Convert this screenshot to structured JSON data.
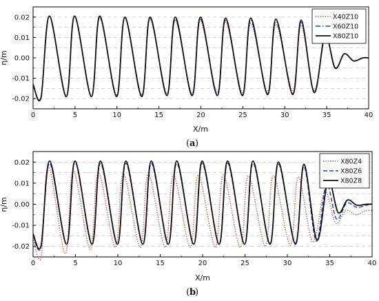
{
  "chart_data": [
    {
      "type": "line",
      "caption": "a",
      "xlabel": "X/m",
      "ylabel": "η/m",
      "xlim": [
        0,
        40
      ],
      "ylim": [
        -0.025,
        0.025
      ],
      "xticks": [
        "0",
        "5",
        "10",
        "15",
        "20",
        "25",
        "30",
        "35",
        "40"
      ],
      "yticks": [
        "-0.02",
        "-0.01",
        "0.00",
        "0.01",
        "0.02"
      ],
      "grid": "horizontal dashed",
      "legend_position": "top-right",
      "series": [
        {
          "name": "X40Z10",
          "style": "dotted",
          "color": "#c0392b",
          "x": [
            0,
            0.95,
            1.95,
            3.95,
            4.95,
            6.95,
            7.95,
            9.95,
            10.95,
            12.95,
            13.95,
            15.95,
            16.95,
            18.95,
            19.95,
            21.95,
            22.95,
            24.95,
            25.95,
            27.95,
            28.95,
            30.95,
            31.95,
            33.5,
            34.8,
            36.0,
            37.1,
            38.2,
            39.3,
            40
          ],
          "y": [
            -0.013,
            -0.019,
            0.0205,
            -0.0185,
            0.02,
            -0.0185,
            0.0195,
            -0.018,
            0.0195,
            -0.018,
            0.019,
            -0.0175,
            0.0185,
            -0.0175,
            0.018,
            -0.017,
            0.0175,
            -0.017,
            0.017,
            -0.0165,
            0.0165,
            -0.016,
            0.016,
            -0.016,
            0.0115,
            -0.0045,
            0.002,
            -0.0015,
            0.0,
            0.0
          ]
        },
        {
          "name": "X60Z10",
          "style": "dash-dot",
          "color": "#1f3fbf",
          "x": [
            0,
            0.95,
            1.95,
            3.95,
            4.95,
            6.95,
            7.95,
            9.95,
            10.95,
            12.95,
            13.95,
            15.95,
            16.95,
            18.95,
            19.95,
            21.95,
            22.95,
            24.95,
            25.95,
            27.95,
            28.95,
            30.95,
            31.95,
            33.5,
            34.8,
            36.0,
            37.1,
            38.2,
            39.3,
            40
          ],
          "y": [
            -0.013,
            -0.019,
            0.0205,
            -0.019,
            0.0205,
            -0.019,
            0.02,
            -0.0185,
            0.02,
            -0.0185,
            0.0195,
            -0.018,
            0.019,
            -0.018,
            0.019,
            -0.018,
            0.0185,
            -0.018,
            0.0185,
            -0.0175,
            0.018,
            -0.0175,
            0.0175,
            -0.0165,
            0.011,
            -0.005,
            0.002,
            -0.0015,
            0.0,
            0.0
          ]
        },
        {
          "name": "X80Z10",
          "style": "solid",
          "color": "#111111",
          "x": [
            0,
            0.95,
            1.95,
            3.95,
            4.95,
            6.95,
            7.95,
            9.95,
            10.95,
            12.95,
            13.95,
            15.95,
            16.95,
            18.95,
            19.95,
            21.95,
            22.95,
            24.95,
            25.95,
            27.95,
            28.95,
            30.95,
            31.95,
            33.5,
            34.8,
            36.0,
            37.1,
            38.2,
            39.3,
            40
          ],
          "y": [
            -0.013,
            -0.0195,
            0.0205,
            -0.019,
            0.0205,
            -0.019,
            0.0205,
            -0.019,
            0.02,
            -0.019,
            0.02,
            -0.0185,
            0.02,
            -0.0185,
            0.02,
            -0.0185,
            0.0195,
            -0.0185,
            0.0195,
            -0.018,
            0.019,
            -0.018,
            0.0185,
            -0.017,
            0.011,
            -0.005,
            0.002,
            -0.0015,
            0.0,
            0.0
          ]
        }
      ]
    },
    {
      "type": "line",
      "caption": "b",
      "xlabel": "X/m",
      "ylabel": "η/m",
      "xlim": [
        0,
        40
      ],
      "ylim": [
        -0.025,
        0.025
      ],
      "xticks": [
        "0",
        "5",
        "10",
        "15",
        "20",
        "25",
        "30",
        "35",
        "40"
      ],
      "yticks": [
        "-0.02",
        "-0.01",
        "0.00",
        "0.01",
        "0.02"
      ],
      "grid": "horizontal dashed",
      "legend_position": "top-right",
      "series": [
        {
          "name": "X80Z4",
          "style": "dotted",
          "color": "#c0392b",
          "x": [
            0,
            0.95,
            1.8,
            3.8,
            4.75,
            6.75,
            7.7,
            9.7,
            10.65,
            12.65,
            13.6,
            15.6,
            16.55,
            18.55,
            19.5,
            21.5,
            22.45,
            24.45,
            25.4,
            27.4,
            28.35,
            30.35,
            31.3,
            33.0,
            34.4,
            35.7,
            36.9,
            38.1,
            39.2,
            40
          ],
          "y": [
            -0.016,
            -0.025,
            0.018,
            -0.0235,
            0.016,
            -0.0215,
            0.015,
            -0.0205,
            0.0145,
            -0.0205,
            0.0145,
            -0.0205,
            0.014,
            -0.0205,
            0.014,
            -0.0205,
            0.014,
            -0.0205,
            0.0135,
            -0.02,
            0.0135,
            -0.0195,
            0.013,
            -0.018,
            0.006,
            -0.009,
            -0.003,
            -0.005,
            -0.003,
            -0.003
          ]
        },
        {
          "name": "X80Z6",
          "style": "dashed",
          "color": "#1f3fbf",
          "x": [
            0,
            0.95,
            1.95,
            3.95,
            4.95,
            6.95,
            7.95,
            9.95,
            10.95,
            12.95,
            13.95,
            15.95,
            16.95,
            18.95,
            19.95,
            21.95,
            22.95,
            24.95,
            25.95,
            27.95,
            28.95,
            30.95,
            31.95,
            33.4,
            34.6,
            35.8,
            37.0,
            38.2,
            39.3,
            40
          ],
          "y": [
            -0.015,
            -0.02,
            0.0195,
            -0.019,
            0.02,
            -0.019,
            0.0195,
            -0.019,
            0.0195,
            -0.019,
            0.0195,
            -0.019,
            0.0195,
            -0.019,
            0.0195,
            -0.019,
            0.0195,
            -0.019,
            0.0195,
            -0.0185,
            0.019,
            -0.0185,
            0.018,
            -0.0175,
            0.0095,
            -0.007,
            0.0005,
            -0.0015,
            -0.0005,
            0.0
          ]
        },
        {
          "name": "X80Z8",
          "style": "solid",
          "color": "#111111",
          "x": [
            0,
            0.95,
            1.95,
            3.95,
            4.95,
            6.95,
            7.95,
            9.95,
            10.95,
            12.95,
            13.95,
            15.95,
            16.95,
            18.95,
            19.95,
            21.95,
            22.95,
            24.95,
            25.95,
            27.95,
            28.95,
            30.95,
            31.95,
            33.5,
            34.8,
            36.0,
            37.1,
            38.2,
            39.3,
            40
          ],
          "y": [
            -0.014,
            -0.0195,
            0.0205,
            -0.019,
            0.0205,
            -0.019,
            0.0205,
            -0.019,
            0.0205,
            -0.019,
            0.0205,
            -0.019,
            0.0205,
            -0.019,
            0.0205,
            -0.019,
            0.0205,
            -0.019,
            0.0205,
            -0.019,
            0.02,
            -0.019,
            0.019,
            -0.017,
            0.011,
            -0.004,
            0.002,
            -0.0005,
            0.0,
            0.0
          ]
        }
      ]
    }
  ]
}
